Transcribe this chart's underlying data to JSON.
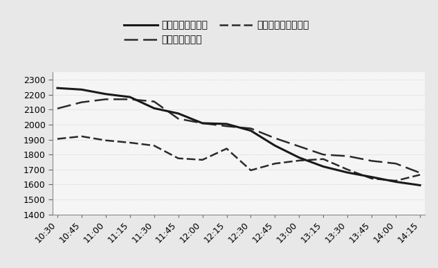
{
  "x_labels": [
    "10:30",
    "10:45",
    "11:00",
    "11:15",
    "11:30",
    "11:45",
    "12:00",
    "12:15",
    "12:30",
    "12:45",
    "13:00",
    "13:15",
    "13:30",
    "13:45",
    "14:00",
    "14:15"
  ],
  "line1_name": "新能源超短期预测",
  "line1_values": [
    2245,
    2235,
    2205,
    2185,
    2110,
    2075,
    2010,
    2005,
    1960,
    1860,
    1780,
    1720,
    1680,
    1650,
    1618,
    1595
  ],
  "line2_name": "新能源日前计划",
  "line2_values": [
    2108,
    2150,
    2170,
    2170,
    2155,
    2040,
    2010,
    1990,
    1975,
    1910,
    1855,
    1800,
    1790,
    1758,
    1740,
    1678
  ],
  "line3_name": "新能源日内滚动计划",
  "line3_values": [
    1905,
    1922,
    1895,
    1880,
    1860,
    1775,
    1765,
    1840,
    1695,
    1740,
    1760,
    1770,
    1700,
    1640,
    1625,
    1665
  ],
  "ylim": [
    1400,
    2350
  ],
  "yticks": [
    1400,
    1500,
    1600,
    1700,
    1800,
    1900,
    2000,
    2100,
    2200,
    2300
  ],
  "fig_facecolor": "#e8e8e8",
  "plot_facecolor": "#f5f5f5",
  "line1_color": "#1a1a1a",
  "line2_color": "#2a2a2a",
  "line3_color": "#2a2a2a",
  "grid_color": "#cccccc",
  "tick_fontsize": 9,
  "legend_fontsize": 10
}
